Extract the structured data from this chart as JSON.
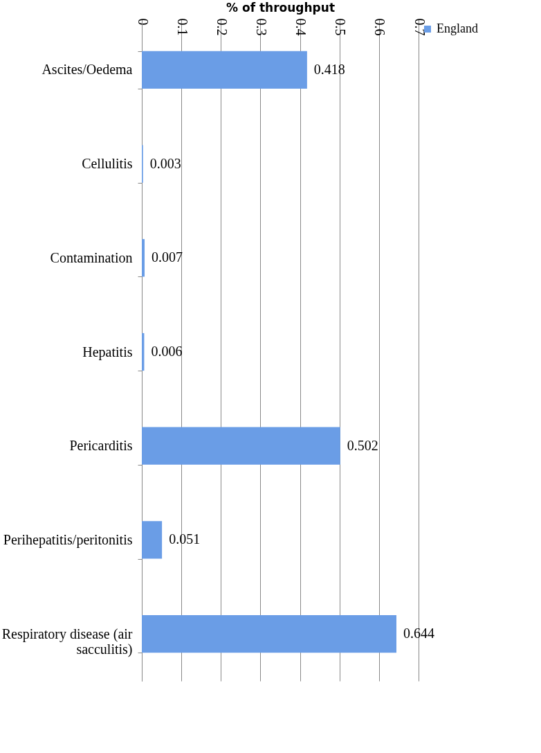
{
  "chart_data": {
    "type": "bar",
    "orientation": "horizontal",
    "xlabel": "% of throughput",
    "categories": [
      "Ascites/Oedema",
      "Cellulitis",
      "Contamination",
      "Hepatitis",
      "Pericarditis",
      "Perihepatitis/peritonitis",
      "Respiratory disease (air sacculitis)"
    ],
    "series": [
      {
        "name": "England",
        "color": "#6a9de6",
        "values": [
          0.418,
          0.003,
          0.007,
          0.006,
          0.502,
          0.051,
          0.644
        ]
      }
    ],
    "xlim": [
      0,
      0.7
    ],
    "xticks": [
      0,
      0.1,
      0.2,
      0.3,
      0.4,
      0.5,
      0.6,
      0.7
    ],
    "grid": "x",
    "legend": "right",
    "data_labels": true
  }
}
